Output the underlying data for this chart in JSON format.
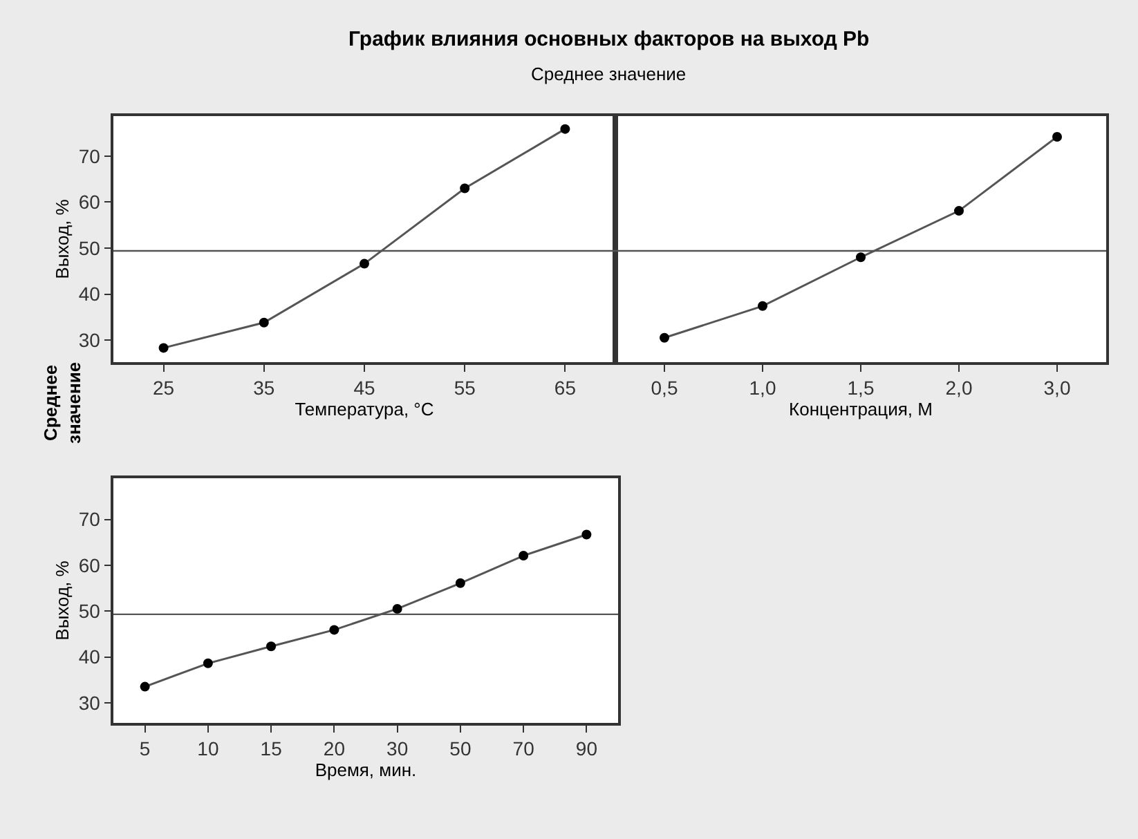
{
  "chart_data": [
    {
      "type": "line",
      "title": "График влияния основных факторов на выход Pb",
      "subtitle": "Среднее значение",
      "annotations": [
        "Среднее значение"
      ],
      "xlabel": "Температура, °C",
      "ylabel": "Выход, %",
      "categories": [
        "25",
        "35",
        "45",
        "55",
        "65"
      ],
      "series": [
        {
          "color": "#000000",
          "values": [
            28.3,
            33.8,
            46.6,
            63.0,
            75.9
          ]
        }
      ],
      "ylim": [
        25.2,
        78.7
      ],
      "yticks": [
        30,
        40,
        50,
        60,
        70
      ],
      "ref_lines": [
        {
          "axis": "y",
          "value": 49.4,
          "color": "#555555"
        }
      ],
      "grid": false,
      "marker": "circle",
      "line_style": "solid"
    },
    {
      "type": "line",
      "xlabel": "Концентрация, M",
      "categories": [
        "0,5",
        "1,0",
        "1,5",
        "2,0",
        "3,0"
      ],
      "series": [
        {
          "color": "#000000",
          "values": [
            30.5,
            37.4,
            48.0,
            58.1,
            74.2
          ]
        }
      ],
      "ylim": [
        25.2,
        78.7
      ],
      "yticks": [
        30,
        40,
        50,
        60,
        70
      ],
      "tick_labels": "x",
      "ref_lines": [
        {
          "axis": "y",
          "value": 49.4,
          "color": "#555555"
        }
      ],
      "grid": false,
      "marker": "circle",
      "line_style": "solid"
    },
    {
      "type": "line",
      "xlabel": "Время, мин.",
      "ylabel": "Выход, %",
      "categories": [
        "5",
        "10",
        "15",
        "20",
        "30",
        "50",
        "70",
        "90"
      ],
      "series": [
        {
          "color": "#000000",
          "values": [
            33.5,
            38.6,
            42.3,
            45.9,
            50.5,
            56.1,
            62.1,
            66.7
          ]
        }
      ],
      "ylim": [
        25.6,
        79.0
      ],
      "yticks": [
        30,
        40,
        50,
        60,
        70
      ],
      "ref_lines": [
        {
          "axis": "y",
          "value": 49.3,
          "color": "#555555"
        }
      ],
      "grid": false,
      "marker": "circle",
      "line_style": "solid"
    }
  ]
}
